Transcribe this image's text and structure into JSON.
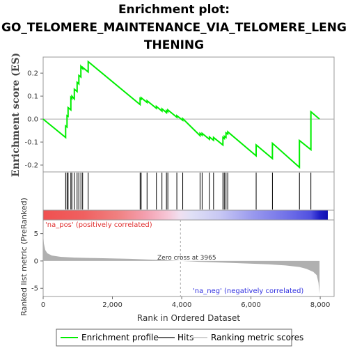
{
  "title_line1": "Enrichment plot:",
  "title_line2": "GO_TELOMERE_MAINTENANCE_VIA_TELOMERE_LENG",
  "title_line3": "THENING",
  "colors": {
    "profile": "#00ee00",
    "hits": "#000000",
    "metric_fill": "#b0b0b0",
    "pos": "#e03030",
    "neg": "#3030e0"
  },
  "chart_data": {
    "type": "line",
    "ylabel_top": "Enrichment score (ES)",
    "ylabel_bottom": "Ranked list metric (PreRanked)",
    "xlabel": "Rank in Ordered Dataset",
    "x_ticks": [
      "0",
      "2,000",
      "4,000",
      "6,000",
      "8,000"
    ],
    "x_tick_values": [
      0,
      2000,
      4000,
      6000,
      8000
    ],
    "es_ticks": [
      "0.2",
      "0.1",
      "0.0",
      "-0.1",
      "-0.2"
    ],
    "es_tick_values": [
      0.2,
      0.1,
      0.0,
      -0.1,
      -0.2
    ],
    "metric_ticks": [
      "5",
      "0",
      "-5"
    ],
    "metric_tick_values": [
      5,
      0,
      -5
    ],
    "xlim": [
      0,
      8400
    ],
    "es_ylim": [
      -0.23,
      0.27
    ],
    "metric_ylim": [
      -6.5,
      7.5
    ],
    "n_genes": 7980,
    "zero_cross": 3965,
    "zero_cross_label": "Zero cross at 3965",
    "pos_label": "'na_pos' (positively correlated)",
    "neg_label": "'na_neg' (negatively correlated)",
    "hits": [
      650,
      690,
      720,
      800,
      830,
      900,
      980,
      1030,
      1090,
      1140,
      1300,
      2800,
      2830,
      3000,
      3270,
      3430,
      3560,
      3600,
      3860,
      4030,
      4530,
      4590,
      4800,
      4920,
      5190,
      5230,
      5280,
      5330,
      6150,
      6620,
      7400,
      7730
    ],
    "es_profile": {
      "x": [
        0,
        650,
        650,
        690,
        690,
        720,
        720,
        800,
        800,
        830,
        830,
        900,
        900,
        980,
        980,
        1030,
        1030,
        1090,
        1090,
        1140,
        1140,
        1300,
        1300,
        2800,
        2800,
        2830,
        2830,
        3000,
        3000,
        3270,
        3270,
        3430,
        3430,
        3560,
        3560,
        3600,
        3600,
        3860,
        3860,
        4030,
        4030,
        4530,
        4530,
        4590,
        4590,
        4800,
        4800,
        4920,
        4920,
        5190,
        5190,
        5230,
        5230,
        5280,
        5280,
        5330,
        5330,
        6150,
        6150,
        6620,
        6620,
        7400,
        7400,
        7730,
        7730,
        7980
      ],
      "y": [
        0.0,
        -0.08,
        -0.03,
        -0.035,
        0.015,
        0.012,
        0.05,
        0.04,
        0.095,
        0.09,
        0.1,
        0.088,
        0.13,
        0.12,
        0.16,
        0.153,
        0.19,
        0.183,
        0.23,
        0.22,
        0.225,
        0.205,
        0.25,
        0.063,
        0.09,
        0.087,
        0.093,
        0.072,
        0.08,
        0.047,
        0.055,
        0.035,
        0.045,
        0.028,
        0.037,
        0.032,
        0.04,
        0.008,
        0.015,
        -0.005,
        0.002,
        -0.072,
        -0.062,
        -0.07,
        -0.062,
        -0.088,
        -0.078,
        -0.092,
        -0.08,
        -0.113,
        -0.08,
        -0.085,
        -0.075,
        -0.08,
        -0.06,
        -0.065,
        -0.055,
        -0.16,
        -0.112,
        -0.172,
        -0.105,
        -0.21,
        -0.093,
        -0.133,
        0.032,
        0.0
      ]
    },
    "metric_profile": {
      "x": [
        0,
        20,
        60,
        120,
        250,
        500,
        900,
        1500,
        2500,
        3500,
        3965,
        4500,
        5500,
        6500,
        7000,
        7400,
        7600,
        7800,
        7900,
        7950,
        7980
      ],
      "y": [
        5.2,
        3.2,
        2.0,
        1.4,
        1.0,
        0.75,
        0.62,
        0.52,
        0.38,
        0.15,
        0.0,
        -0.15,
        -0.38,
        -0.62,
        -0.82,
        -1.1,
        -1.45,
        -2.0,
        -2.6,
        -4.0,
        -6.0
      ]
    },
    "legend": [
      "Enrichment profile",
      "Hits",
      "Ranking metric scores"
    ]
  }
}
